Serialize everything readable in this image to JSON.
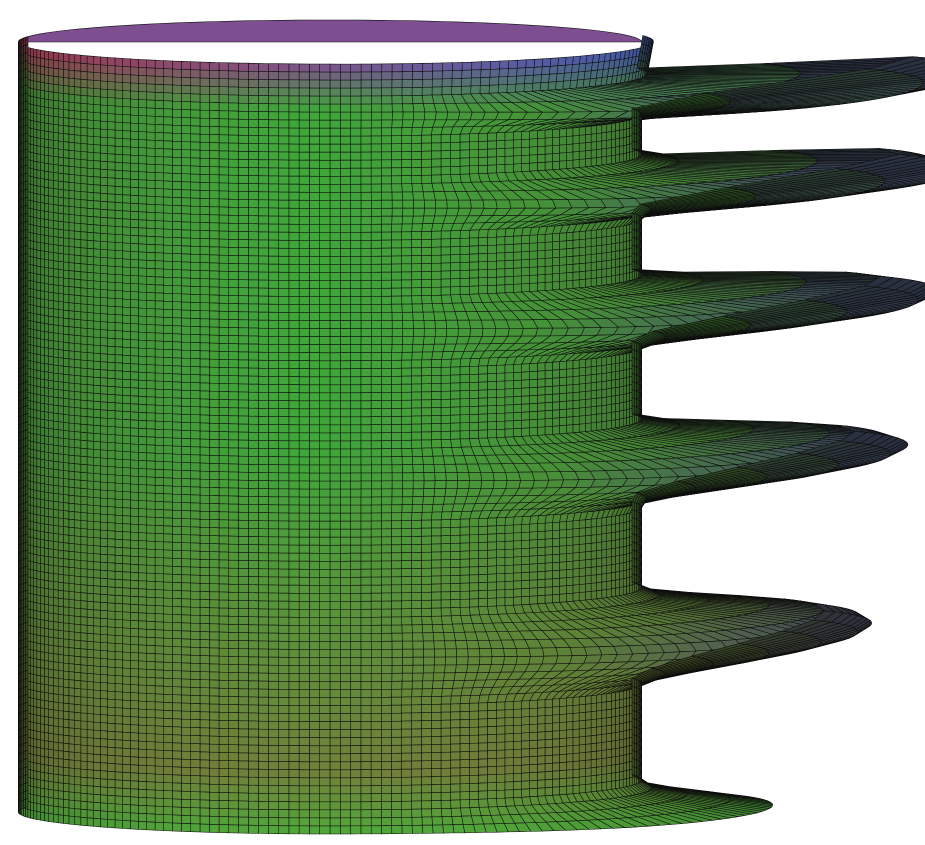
{
  "render": {
    "kind": "3d-parametric-surface",
    "style": "quad-mesh with dark edge lines, smooth shaded faces",
    "background": "#ffffff",
    "mesh_color": "#0d0d0d",
    "colors": {
      "top_left": "#b03a5a",
      "top_right": "#4a63c6",
      "upper_body": "#4f8a3a",
      "mid_center": "#3fa83a",
      "ribbon_tips": "#4a3f8a",
      "lower_body": "#7a7a3a",
      "base_glow": "#44b53a"
    },
    "parameters": {
      "u_steps": 110,
      "v_steps": 96,
      "ribbon_count": 6
    }
  }
}
